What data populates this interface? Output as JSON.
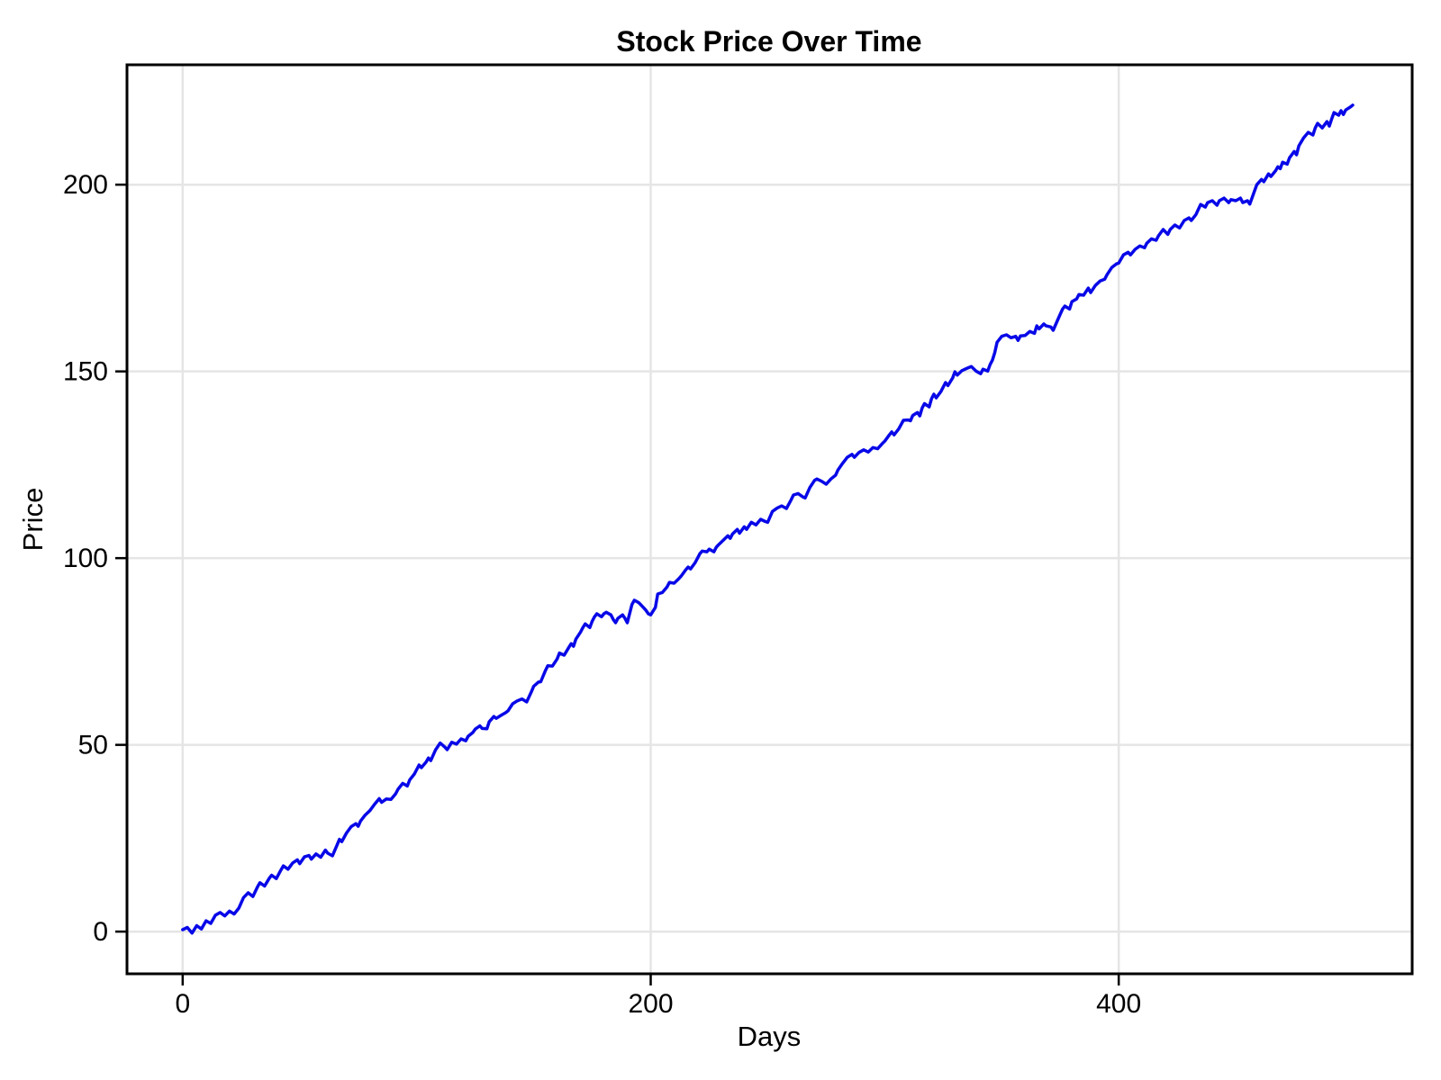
{
  "figure": {
    "title": "Stock Price Over Time",
    "xlabel": "Days",
    "ylabel": "Price"
  },
  "chart_data": {
    "type": "line",
    "title": "Stock Price Over Time",
    "xlabel": "Days",
    "ylabel": "Price",
    "x_ticks": [
      0,
      200,
      400
    ],
    "y_ticks": [
      0,
      50,
      100,
      150,
      200
    ],
    "xlim": [
      -23.8,
      525.4
    ],
    "ylim": [
      -11.3,
      232.1
    ],
    "grid": true,
    "legend": "none",
    "background_color": "#ffffff",
    "frame_color": "#000000",
    "grid_color": "#e5e5e5",
    "line_color": "#0808e8",
    "series": [
      {
        "name": "Price",
        "points": [
          [
            0,
            0.5
          ],
          [
            2,
            1.1
          ],
          [
            4,
            -0.4
          ],
          [
            6,
            1.6
          ],
          [
            8,
            0.7
          ],
          [
            10,
            2.9
          ],
          [
            12,
            2.2
          ],
          [
            14,
            4.4
          ],
          [
            16,
            5.1
          ],
          [
            18,
            4.2
          ],
          [
            20,
            5.5
          ],
          [
            22,
            4.7
          ],
          [
            24,
            6.3
          ],
          [
            26,
            9.1
          ],
          [
            28,
            10.4
          ],
          [
            30,
            9.4
          ],
          [
            32,
            12.0
          ],
          [
            33,
            13.1
          ],
          [
            35,
            12.2
          ],
          [
            37,
            14.3
          ],
          [
            38,
            15.1
          ],
          [
            40,
            14.2
          ],
          [
            42,
            16.5
          ],
          [
            43,
            17.6
          ],
          [
            45,
            16.7
          ],
          [
            47,
            18.4
          ],
          [
            49,
            19.2
          ],
          [
            50,
            18.2
          ],
          [
            52,
            20.0
          ],
          [
            54,
            20.4
          ],
          [
            55,
            19.4
          ],
          [
            57,
            20.8
          ],
          [
            59,
            19.9
          ],
          [
            61,
            21.8
          ],
          [
            62,
            21.0
          ],
          [
            64,
            20.3
          ],
          [
            66,
            23.2
          ],
          [
            67,
            24.7
          ],
          [
            68,
            24.1
          ],
          [
            70,
            26.4
          ],
          [
            72,
            28.1
          ],
          [
            74,
            28.9
          ],
          [
            75,
            28.2
          ],
          [
            76,
            29.6
          ],
          [
            78,
            31.2
          ],
          [
            80,
            32.4
          ],
          [
            82,
            34.1
          ],
          [
            84,
            35.6
          ],
          [
            85,
            34.6
          ],
          [
            87,
            35.5
          ],
          [
            89,
            35.4
          ],
          [
            91,
            36.9
          ],
          [
            92,
            38.1
          ],
          [
            94,
            39.7
          ],
          [
            96,
            39.0
          ],
          [
            97,
            40.6
          ],
          [
            99,
            42.2
          ],
          [
            101,
            44.6
          ],
          [
            102,
            43.9
          ],
          [
            104,
            45.4
          ],
          [
            105,
            46.5
          ],
          [
            106,
            45.8
          ],
          [
            108,
            48.6
          ],
          [
            110,
            50.5
          ],
          [
            112,
            49.4
          ],
          [
            113,
            48.7
          ],
          [
            115,
            50.7
          ],
          [
            117,
            50.2
          ],
          [
            119,
            51.6
          ],
          [
            121,
            51.1
          ],
          [
            122,
            52.3
          ],
          [
            124,
            53.3
          ],
          [
            125,
            54.2
          ],
          [
            127,
            55.1
          ],
          [
            128,
            54.4
          ],
          [
            130,
            54.3
          ],
          [
            131,
            56.2
          ],
          [
            133,
            57.6
          ],
          [
            134,
            57.1
          ],
          [
            136,
            57.9
          ],
          [
            138,
            58.6
          ],
          [
            139,
            59.1
          ],
          [
            141,
            61.0
          ],
          [
            143,
            61.8
          ],
          [
            145,
            62.3
          ],
          [
            147,
            61.5
          ],
          [
            149,
            64.2
          ],
          [
            150,
            65.7
          ],
          [
            152,
            66.8
          ],
          [
            153,
            66.9
          ],
          [
            155,
            69.9
          ],
          [
            156,
            71.2
          ],
          [
            158,
            71.1
          ],
          [
            160,
            73.0
          ],
          [
            161,
            74.6
          ],
          [
            163,
            74.0
          ],
          [
            165,
            76.1
          ],
          [
            166,
            77.1
          ],
          [
            167,
            76.4
          ],
          [
            168,
            78.3
          ],
          [
            170,
            80.2
          ],
          [
            171,
            81.4
          ],
          [
            172,
            82.4
          ],
          [
            174,
            81.4
          ],
          [
            175,
            83.1
          ],
          [
            176,
            84.3
          ],
          [
            177,
            85.1
          ],
          [
            179,
            84.3
          ],
          [
            180,
            85.1
          ],
          [
            181,
            85.5
          ],
          [
            183,
            84.8
          ],
          [
            184,
            83.6
          ],
          [
            185,
            82.7
          ],
          [
            186,
            83.9
          ],
          [
            188,
            84.8
          ],
          [
            189,
            83.9
          ],
          [
            190,
            82.7
          ],
          [
            192,
            87.6
          ],
          [
            193,
            88.7
          ],
          [
            194,
            88.4
          ],
          [
            195,
            88.0
          ],
          [
            197,
            86.7
          ],
          [
            198,
            86.0
          ],
          [
            199,
            85.1
          ],
          [
            200,
            84.8
          ],
          [
            202,
            86.8
          ],
          [
            203,
            90.4
          ],
          [
            205,
            90.8
          ],
          [
            207,
            92.3
          ],
          [
            208,
            93.5
          ],
          [
            210,
            93.3
          ],
          [
            212,
            94.5
          ],
          [
            213,
            95.2
          ],
          [
            215,
            96.9
          ],
          [
            216,
            97.6
          ],
          [
            217,
            97.1
          ],
          [
            219,
            98.8
          ],
          [
            220,
            100.0
          ],
          [
            221,
            101.2
          ],
          [
            222,
            101.9
          ],
          [
            224,
            101.7
          ],
          [
            225,
            102.4
          ],
          [
            227,
            101.7
          ],
          [
            228,
            102.9
          ],
          [
            229,
            103.6
          ],
          [
            231,
            104.8
          ],
          [
            233,
            106.0
          ],
          [
            234,
            105.3
          ],
          [
            235,
            106.5
          ],
          [
            237,
            107.7
          ],
          [
            238,
            106.7
          ],
          [
            240,
            108.4
          ],
          [
            241,
            107.7
          ],
          [
            243,
            109.6
          ],
          [
            245,
            108.9
          ],
          [
            247,
            110.4
          ],
          [
            249,
            109.8
          ],
          [
            250,
            109.6
          ],
          [
            252,
            112.5
          ],
          [
            254,
            113.4
          ],
          [
            256,
            114.0
          ],
          [
            258,
            113.3
          ],
          [
            260,
            115.6
          ],
          [
            261,
            116.9
          ],
          [
            263,
            117.3
          ],
          [
            265,
            116.4
          ],
          [
            266,
            116.1
          ],
          [
            268,
            118.9
          ],
          [
            270,
            120.8
          ],
          [
            271,
            121.2
          ],
          [
            273,
            120.6
          ],
          [
            275,
            119.8
          ],
          [
            277,
            121.2
          ],
          [
            279,
            122.2
          ],
          [
            280,
            123.6
          ],
          [
            282,
            125.4
          ],
          [
            284,
            127.0
          ],
          [
            286,
            127.8
          ],
          [
            287,
            127.0
          ],
          [
            289,
            128.3
          ],
          [
            291,
            129.0
          ],
          [
            293,
            128.4
          ],
          [
            295,
            129.6
          ],
          [
            297,
            129.3
          ],
          [
            299,
            130.7
          ],
          [
            300,
            131.3
          ],
          [
            302,
            133.0
          ],
          [
            303,
            133.8
          ],
          [
            304,
            133.0
          ],
          [
            306,
            134.6
          ],
          [
            308,
            136.9
          ],
          [
            310,
            137.0
          ],
          [
            311,
            136.8
          ],
          [
            312,
            138.2
          ],
          [
            314,
            139.0
          ],
          [
            315,
            138.1
          ],
          [
            316,
            140.2
          ],
          [
            317,
            141.4
          ],
          [
            319,
            140.5
          ],
          [
            320,
            142.7
          ],
          [
            321,
            143.9
          ],
          [
            322,
            142.9
          ],
          [
            324,
            144.6
          ],
          [
            325,
            145.8
          ],
          [
            326,
            147.0
          ],
          [
            327,
            146.2
          ],
          [
            329,
            148.2
          ],
          [
            330,
            149.9
          ],
          [
            331,
            149.0
          ],
          [
            333,
            150.2
          ],
          [
            335,
            150.8
          ],
          [
            337,
            151.3
          ],
          [
            339,
            150.1
          ],
          [
            341,
            149.4
          ],
          [
            342,
            150.6
          ],
          [
            344,
            150.1
          ],
          [
            345,
            151.8
          ],
          [
            346,
            153.0
          ],
          [
            347,
            155.0
          ],
          [
            348,
            157.8
          ],
          [
            350,
            159.4
          ],
          [
            352,
            159.8
          ],
          [
            354,
            159.0
          ],
          [
            356,
            159.4
          ],
          [
            357,
            158.3
          ],
          [
            358,
            159.5
          ],
          [
            360,
            159.6
          ],
          [
            362,
            160.7
          ],
          [
            364,
            160.2
          ],
          [
            365,
            162.2
          ],
          [
            366,
            161.4
          ],
          [
            368,
            162.7
          ],
          [
            369,
            162.2
          ],
          [
            371,
            161.9
          ],
          [
            372,
            161.0
          ],
          [
            374,
            163.9
          ],
          [
            376,
            166.7
          ],
          [
            377,
            167.5
          ],
          [
            379,
            166.7
          ],
          [
            380,
            168.7
          ],
          [
            382,
            169.4
          ],
          [
            383,
            170.6
          ],
          [
            385,
            170.4
          ],
          [
            387,
            172.3
          ],
          [
            388,
            171.1
          ],
          [
            390,
            173.0
          ],
          [
            392,
            174.2
          ],
          [
            394,
            174.7
          ],
          [
            395,
            175.9
          ],
          [
            397,
            177.8
          ],
          [
            399,
            178.8
          ],
          [
            400,
            179.0
          ],
          [
            402,
            181.2
          ],
          [
            404,
            181.9
          ],
          [
            405,
            181.2
          ],
          [
            407,
            182.7
          ],
          [
            409,
            183.6
          ],
          [
            411,
            183.1
          ],
          [
            412,
            184.3
          ],
          [
            414,
            185.5
          ],
          [
            416,
            185.1
          ],
          [
            417,
            186.3
          ],
          [
            419,
            188.0
          ],
          [
            421,
            186.7
          ],
          [
            422,
            188.0
          ],
          [
            424,
            189.2
          ],
          [
            426,
            188.4
          ],
          [
            428,
            190.4
          ],
          [
            430,
            191.1
          ],
          [
            431,
            190.4
          ],
          [
            433,
            192.0
          ],
          [
            435,
            194.7
          ],
          [
            437,
            194.0
          ],
          [
            438,
            195.2
          ],
          [
            440,
            195.7
          ],
          [
            442,
            194.5
          ],
          [
            443,
            195.7
          ],
          [
            445,
            196.4
          ],
          [
            447,
            195.2
          ],
          [
            448,
            196.0
          ],
          [
            450,
            195.7
          ],
          [
            452,
            196.4
          ],
          [
            453,
            195.2
          ],
          [
            455,
            195.7
          ],
          [
            456,
            194.8
          ],
          [
            458,
            198.3
          ],
          [
            459,
            200.0
          ],
          [
            461,
            201.4
          ],
          [
            462,
            200.8
          ],
          [
            464,
            202.9
          ],
          [
            465,
            202.2
          ],
          [
            467,
            203.7
          ],
          [
            468,
            204.8
          ],
          [
            469,
            204.3
          ],
          [
            470,
            206.0
          ],
          [
            472,
            205.5
          ],
          [
            473,
            207.2
          ],
          [
            475,
            208.9
          ],
          [
            476,
            208.0
          ],
          [
            477,
            210.4
          ],
          [
            479,
            212.5
          ],
          [
            481,
            214.0
          ],
          [
            483,
            213.3
          ],
          [
            484,
            215.2
          ],
          [
            485,
            216.4
          ],
          [
            487,
            215.2
          ],
          [
            489,
            216.9
          ],
          [
            490,
            215.7
          ],
          [
            491,
            217.6
          ],
          [
            492,
            219.3
          ],
          [
            494,
            218.6
          ],
          [
            495,
            219.8
          ],
          [
            496,
            218.8
          ],
          [
            497,
            220.0
          ],
          [
            499,
            220.8
          ],
          [
            500,
            221.3
          ]
        ]
      }
    ]
  }
}
